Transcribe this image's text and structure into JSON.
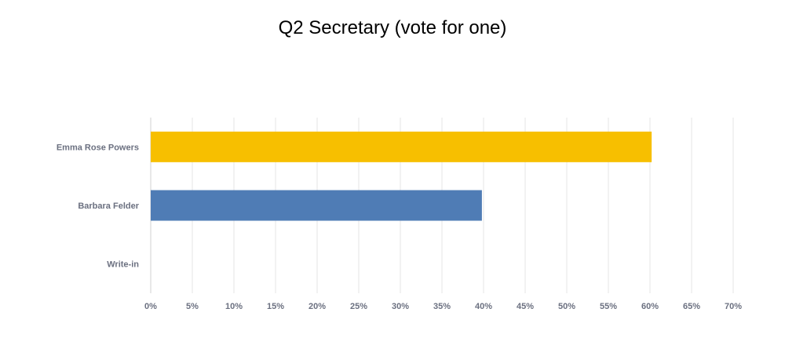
{
  "chart_data": {
    "type": "bar",
    "orientation": "horizontal",
    "title": "Q2 Secretary (vote for one)",
    "categories": [
      "Emma Rose Powers",
      "Barbara Felder",
      "Write-in"
    ],
    "values": [
      60.2,
      39.8,
      0
    ],
    "colors": [
      "#f7bf00",
      "#4f7cb5",
      "#4f7cb5"
    ],
    "xlim": [
      0,
      70
    ],
    "xticks": [
      "0%",
      "5%",
      "10%",
      "15%",
      "20%",
      "25%",
      "30%",
      "35%",
      "40%",
      "45%",
      "50%",
      "55%",
      "60%",
      "65%",
      "70%"
    ],
    "grid": true,
    "xlabel": "",
    "ylabel": ""
  }
}
